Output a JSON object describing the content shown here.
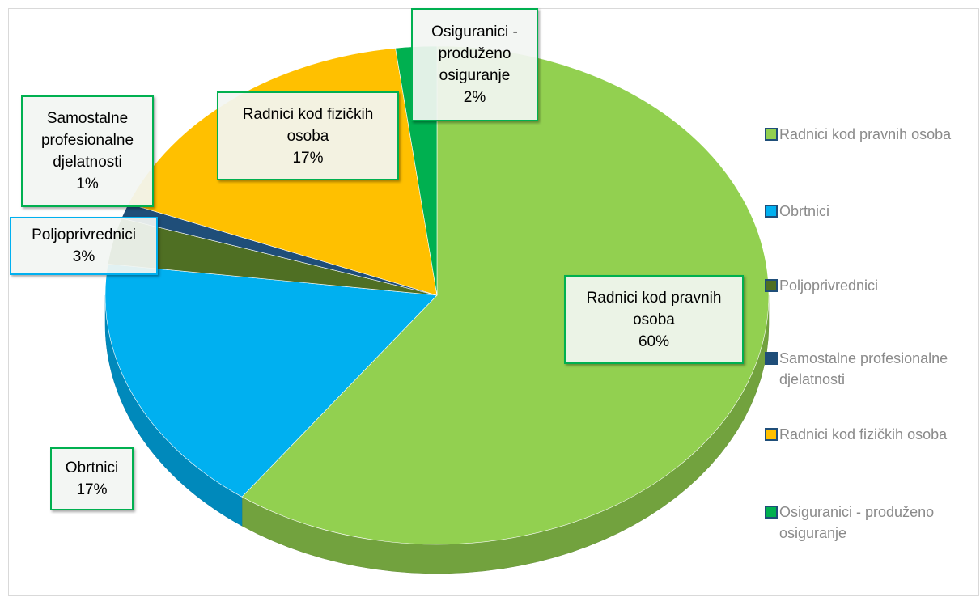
{
  "chart_data": {
    "type": "pie",
    "categories": [
      "Radnici kod pravnih osoba",
      "Obrtnici",
      "Poljoprivrednici",
      "Samostalne profesionalne djelatnosti",
      "Radnici kod fizičkih osoba",
      "Osiguranici - produženo osiguranje"
    ],
    "values": [
      60,
      17,
      3,
      1,
      17,
      2
    ],
    "value_labels": [
      "60%",
      "17%",
      "3%",
      "1%",
      "17%",
      "2%"
    ],
    "colors": [
      "#92d050",
      "#00b0f0",
      "#4f6f23",
      "#1f4e79",
      "#ffc000",
      "#00b050"
    ],
    "legend": "right"
  }
}
